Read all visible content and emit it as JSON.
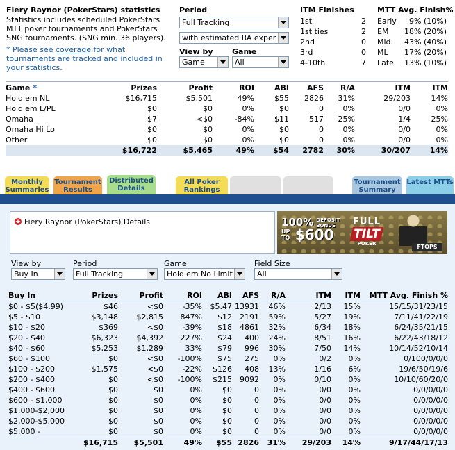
{
  "summary": {
    "title": "Fiery Raynor (PokerStars) statistics",
    "desc": "Statistics includes scheduled PokerStars MTT poker tournaments and PokerStars SNG tournaments. (SNG min. 36 players).",
    "note_prefix": "* Please see ",
    "note_link": "coverage",
    "note_suffix": " for what tournaments are tracked and included in your statistics."
  },
  "filters_top": {
    "period_label": "Period",
    "period_value": "Full Tracking",
    "ra_value": "with estimated RA exper",
    "viewby_label": "View by",
    "viewby_value": "Game",
    "game_label": "Game",
    "game_value": "All"
  },
  "itm_finishes": {
    "header": "ITM Finishes",
    "rows": [
      {
        "label": "1st",
        "value": "2"
      },
      {
        "label": "1st ties",
        "value": "2"
      },
      {
        "label": "2nd",
        "value": "0"
      },
      {
        "label": "3rd",
        "value": "0"
      },
      {
        "label": "4-10th",
        "value": "7"
      }
    ]
  },
  "mtt_avg": {
    "header": "MTT Avg. Finish%",
    "rows": [
      {
        "label": "Early",
        "value": "9% (10%)"
      },
      {
        "label": "EM",
        "value": "18% (20%)"
      },
      {
        "label": "Mid.",
        "value": "43% (40%)"
      },
      {
        "label": "ML",
        "value": "17% (20%)"
      },
      {
        "label": "Late",
        "value": "13% (10%)"
      }
    ]
  },
  "game_table": {
    "headers": [
      "Game *",
      "Prizes",
      "Profit",
      "ROI",
      "ABI",
      "AFS",
      "R/A",
      "ITM",
      "ITM"
    ],
    "rows": [
      [
        "Hold'em NL",
        "$16,715",
        "$5,501",
        "49%",
        "$55",
        "2826",
        "31%",
        "29/203",
        "14%"
      ],
      [
        "Hold'em L/PL",
        "$0",
        "$0",
        "0%",
        "$0",
        "0",
        "0%",
        "0/0",
        "0%"
      ],
      [
        "Omaha",
        "$7",
        "<$0",
        "-84%",
        "$11",
        "517",
        "25%",
        "1/4",
        "25%"
      ],
      [
        "Omaha Hi Lo",
        "$0",
        "$0",
        "0%",
        "$0",
        "0",
        "0%",
        "0/0",
        "0%"
      ],
      [
        "Other",
        "$0",
        "$0",
        "0%",
        "$0",
        "0",
        "0%",
        "0/0",
        "0%"
      ]
    ],
    "total": [
      "",
      "$16,722",
      "$5,465",
      "49%",
      "$54",
      "2782",
      "30%",
      "30/207",
      "14%"
    ]
  },
  "tabs": [
    {
      "label": "Monthly Summaries",
      "bg": "#f5dc57"
    },
    {
      "label": "Tournament Results",
      "bg": "#f1a54a"
    },
    {
      "label": "Distributed Details",
      "bg": "#a7dd8c"
    },
    {
      "label": "All Poker Rankings",
      "bg": "#f5dc57"
    },
    {
      "label": "Tournament Summary",
      "bg": "#a9c8e0"
    },
    {
      "label": "Latest MTTs",
      "bg": "#8dcfe8"
    }
  ],
  "details": {
    "player_title": "Fiery Raynor (PokerStars) Details",
    "ad": {
      "line1": "100%",
      "line2": "DEPOSIT BONUS",
      "line3": "UP TO",
      "amount": "$600",
      "brand_top": "FULL",
      "brand_mid": "TILT",
      "brand_bot": "POKER",
      "ftops": "FTOPS"
    },
    "filters": {
      "viewby_label": "View by",
      "viewby_value": "Buy In",
      "period_label": "Period",
      "period_value": "Full Tracking",
      "game_label": "Game",
      "game_value": "Hold'em No Limit",
      "fieldsize_label": "Field Size",
      "fieldsize_value": "All"
    }
  },
  "buyin_table": {
    "headers": [
      "Buy In",
      "Prizes",
      "Profit",
      "ROI",
      "ABI",
      "AFS",
      "R/A",
      "ITM",
      "ITM",
      "MTT Avg. Finish %"
    ],
    "rows": [
      [
        "$0 - $5($4.99)",
        "$46",
        "<$0",
        "-35%",
        "$5.47",
        "13931",
        "46%",
        "2/13",
        "15%",
        "15/15/31/23/15"
      ],
      [
        "$5 - $10",
        "$3,148",
        "$2,815",
        "847%",
        "$12",
        "2191",
        "59%",
        "5/27",
        "19%",
        "7/11/41/22/19"
      ],
      [
        "$10 - $20",
        "$369",
        "<$0",
        "-39%",
        "$18",
        "4861",
        "32%",
        "6/34",
        "18%",
        "6/24/35/21/15"
      ],
      [
        "$20 - $40",
        "$6,323",
        "$4,392",
        "227%",
        "$24",
        "400",
        "24%",
        "8/51",
        "16%",
        "6/22/43/18/12"
      ],
      [
        "$40 - $60",
        "$5,253",
        "$1,289",
        "33%",
        "$79",
        "996",
        "30%",
        "7/50",
        "14%",
        "10/14/52/10/14"
      ],
      [
        "$60 - $100",
        "$0",
        "<$0",
        "-100%",
        "$75",
        "275",
        "0%",
        "0/2",
        "0%",
        "0/100/0/0/0"
      ],
      [
        "$100 - $200",
        "$1,575",
        "<$0",
        "-22%",
        "$126",
        "408",
        "13%",
        "1/16",
        "6%",
        "19/6/50/19/6"
      ],
      [
        "$200 - $400",
        "$0",
        "<$0",
        "-100%",
        "$215",
        "9092",
        "0%",
        "0/10",
        "0%",
        "10/10/60/20/0"
      ],
      [
        "$400 - $600",
        "$0",
        "$0",
        "0%",
        "$0",
        "0",
        "0%",
        "0/0",
        "0%",
        "0/0/0/0/0"
      ],
      [
        "$600 - $1,000",
        "$0",
        "$0",
        "0%",
        "$0",
        "0",
        "0%",
        "0/0",
        "0%",
        "0/0/0/0/0"
      ],
      [
        "$1,000-$2,000",
        "$0",
        "$0",
        "0%",
        "$0",
        "0",
        "0%",
        "0/0",
        "0%",
        "0/0/0/0/0"
      ],
      [
        "$2,000-$5,000",
        "$0",
        "$0",
        "0%",
        "$0",
        "0",
        "0%",
        "0/0",
        "0%",
        "0/0/0/0/0"
      ],
      [
        "$5,000 -",
        "$0",
        "$0",
        "0%",
        "$0",
        "0",
        "0%",
        "0/0",
        "0%",
        "0/0/0/0/0"
      ]
    ],
    "total": [
      "",
      "$16,715",
      "$5,501",
      "49%",
      "$55",
      "2826",
      "31%",
      "29/203",
      "14%",
      "9/17/44/17/13"
    ]
  }
}
